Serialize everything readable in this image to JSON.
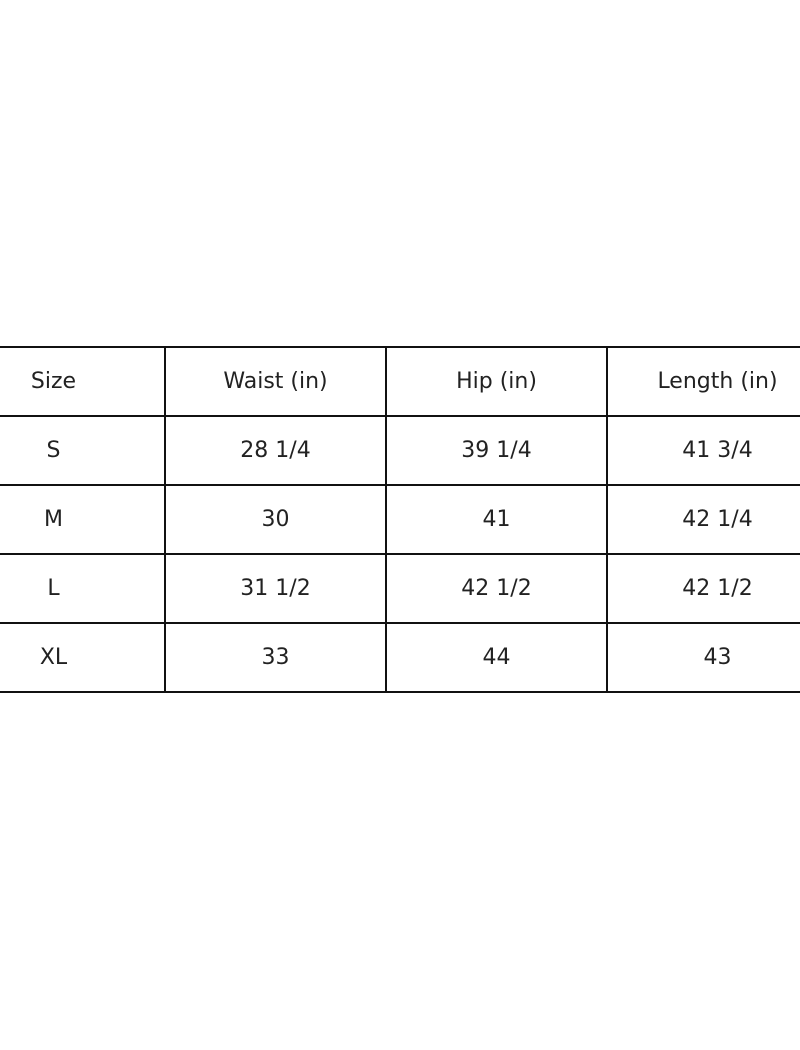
{
  "table": {
    "headers": [
      "Size",
      "Waist (in)",
      "Hip (in)",
      "Length (in)"
    ],
    "rows": [
      [
        "S",
        "28 1/4",
        "39 1/4",
        "41 3/4"
      ],
      [
        "M",
        "30",
        "41",
        "42 1/4"
      ],
      [
        "L",
        "31 1/2",
        "42 1/2",
        "42 1/2"
      ],
      [
        "XL",
        "33",
        "44",
        "43"
      ]
    ]
  }
}
